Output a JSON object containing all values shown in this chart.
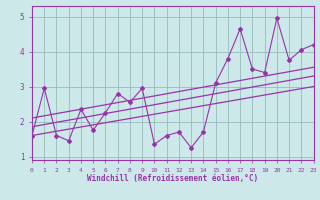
{
  "x_data": [
    0,
    1,
    2,
    3,
    4,
    5,
    6,
    7,
    8,
    9,
    10,
    11,
    12,
    13,
    14,
    15,
    16,
    17,
    18,
    19,
    20,
    21,
    22,
    23
  ],
  "y_scatter": [
    1.6,
    2.95,
    1.6,
    1.45,
    2.35,
    1.75,
    2.25,
    2.8,
    2.55,
    2.95,
    1.35,
    1.6,
    1.7,
    1.25,
    1.7,
    3.1,
    3.8,
    4.65,
    3.5,
    3.4,
    4.95,
    3.75,
    4.05,
    4.2
  ],
  "trend1_x": [
    0,
    23
  ],
  "trend1_y": [
    1.6,
    3.0
  ],
  "trend2_x": [
    0,
    23
  ],
  "trend2_y": [
    1.85,
    3.3
  ],
  "trend3_x": [
    0,
    23
  ],
  "trend3_y": [
    2.1,
    3.55
  ],
  "color": "#9933aa",
  "bg_color": "#cce8e8",
  "grid_color": "#99bbbb",
  "xlabel": "Windchill (Refroidissement éolien,°C)",
  "xlim": [
    0,
    23
  ],
  "ylim": [
    0.9,
    5.3
  ],
  "yticks": [
    1,
    2,
    3,
    4,
    5
  ],
  "xticks": [
    0,
    1,
    2,
    3,
    4,
    5,
    6,
    7,
    8,
    9,
    10,
    11,
    12,
    13,
    14,
    15,
    16,
    17,
    18,
    19,
    20,
    21,
    22,
    23
  ]
}
